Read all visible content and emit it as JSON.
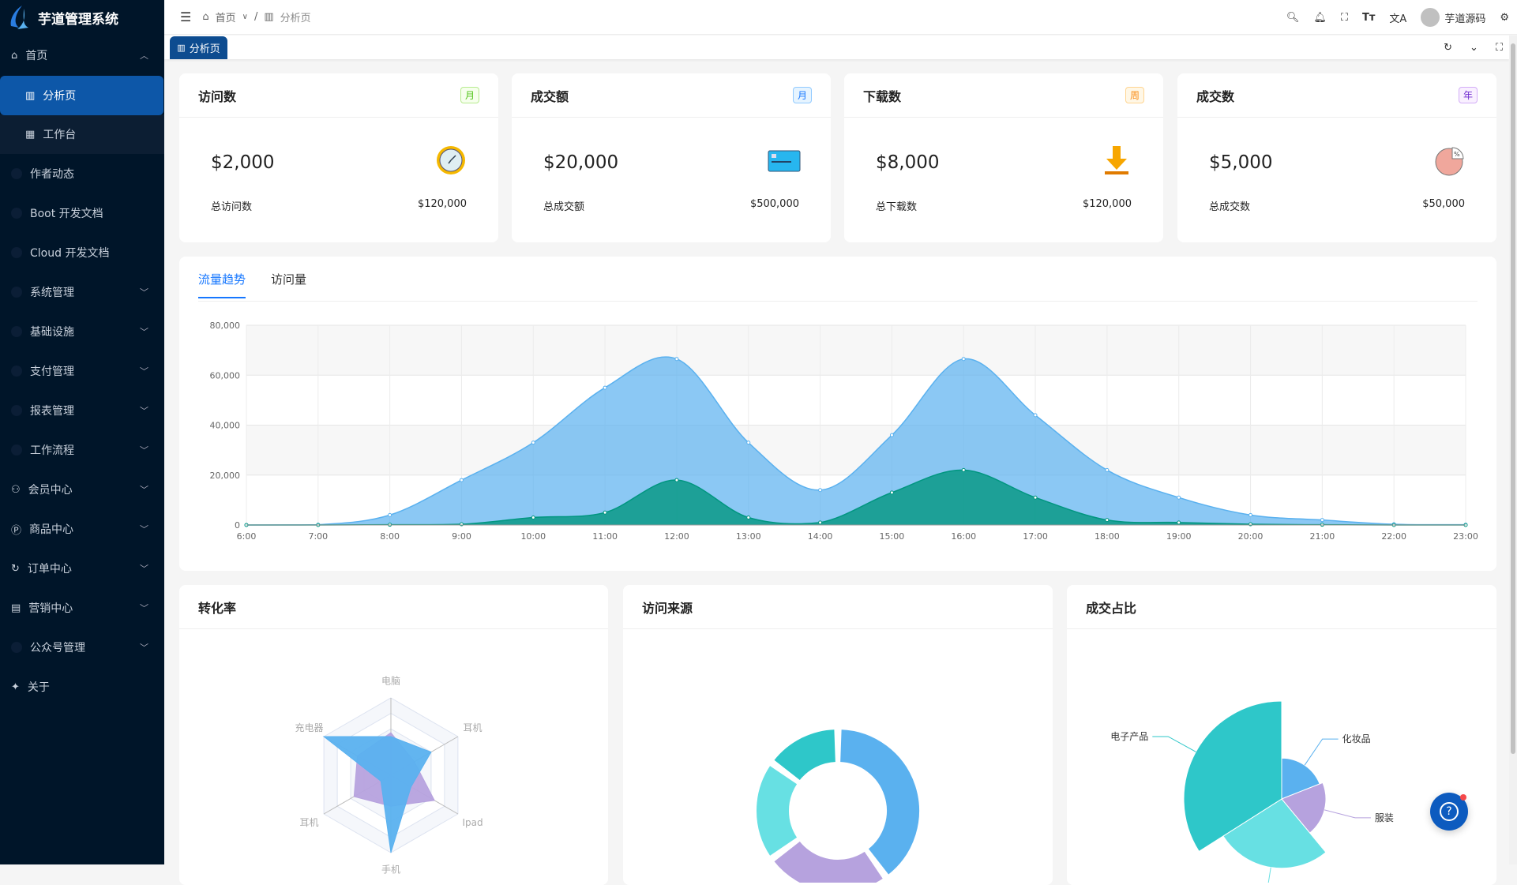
{
  "app": {
    "title": "芋道管理系统"
  },
  "sidebar": {
    "items": [
      {
        "label": "首页",
        "icon": "home-icon",
        "expanded": true
      },
      {
        "label": "分析页",
        "icon": "bar-chart-icon",
        "active": true,
        "sub": true
      },
      {
        "label": "工作台",
        "icon": "grid-icon",
        "sub": true
      },
      {
        "label": "作者动态",
        "icon": "dot-icon"
      },
      {
        "label": "Boot 开发文档",
        "icon": "dot-icon"
      },
      {
        "label": "Cloud 开发文档",
        "icon": "dot-icon"
      },
      {
        "label": "系统管理",
        "icon": "dot-icon",
        "chevron": true
      },
      {
        "label": "基础设施",
        "icon": "dot-icon",
        "chevron": true
      },
      {
        "label": "支付管理",
        "icon": "dot-icon",
        "chevron": true
      },
      {
        "label": "报表管理",
        "icon": "dot-icon",
        "chevron": true
      },
      {
        "label": "工作流程",
        "icon": "dot-icon",
        "chevron": true
      },
      {
        "label": "会员中心",
        "icon": "members-icon",
        "chevron": true
      },
      {
        "label": "商品中心",
        "icon": "product-icon",
        "chevron": true
      },
      {
        "label": "订单中心",
        "icon": "order-icon",
        "chevron": true
      },
      {
        "label": "营销中心",
        "icon": "gift-icon",
        "chevron": true
      },
      {
        "label": "公众号管理",
        "icon": "dot-icon",
        "chevron": true
      },
      {
        "label": "关于",
        "icon": "pin-icon"
      }
    ]
  },
  "header": {
    "breadcrumb": [
      "首页",
      "分析页"
    ],
    "user": "芋道源码"
  },
  "tabs": {
    "active": "分析页"
  },
  "stats": [
    {
      "title": "访问数",
      "tag": "月",
      "tag_color": "#52c41a",
      "value": "$2,000",
      "foot_label": "总访问数",
      "foot_value": "$120,000",
      "icon": "clock-icon"
    },
    {
      "title": "成交额",
      "tag": "月",
      "tag_color": "#1677ff",
      "value": "$20,000",
      "foot_label": "总成交额",
      "foot_value": "$500,000",
      "icon": "credit-card-icon"
    },
    {
      "title": "下载数",
      "tag": "周",
      "tag_color": "#fa8c16",
      "value": "$8,000",
      "foot_label": "总下载数",
      "foot_value": "$120,000",
      "icon": "download-icon"
    },
    {
      "title": "成交数",
      "tag": "年",
      "tag_color": "#722ed1",
      "value": "$5,000",
      "foot_label": "总成交数",
      "foot_value": "$50,000",
      "icon": "pie-percent-icon"
    }
  ],
  "trend": {
    "tabs": [
      "流量趋势",
      "访问量"
    ],
    "active_tab": "流量趋势"
  },
  "panels": {
    "radar_title": "转化率",
    "donut_title": "访问来源",
    "rose_title": "成交占比"
  },
  "chart_data": [
    {
      "type": "area",
      "x": [
        "6:00",
        "7:00",
        "8:00",
        "9:00",
        "10:00",
        "11:00",
        "12:00",
        "13:00",
        "14:00",
        "15:00",
        "16:00",
        "17:00",
        "18:00",
        "19:00",
        "20:00",
        "21:00",
        "22:00",
        "23:00"
      ],
      "ylim": [
        0,
        80000
      ],
      "yticks": [
        "0",
        "20,000",
        "40,000",
        "60,000",
        "80,000"
      ],
      "grid": true,
      "series": [
        {
          "color": "#5ab1ef",
          "values": [
            0,
            100,
            4000,
            18000,
            33000,
            55000,
            66500,
            33000,
            14000,
            36000,
            66500,
            44000,
            22000,
            11000,
            4000,
            2000,
            300,
            100
          ]
        },
        {
          "color": "#019680",
          "values": [
            0,
            0,
            100,
            300,
            3000,
            5000,
            18000,
            3000,
            1000,
            13000,
            22000,
            11000,
            2000,
            1000,
            300,
            100,
            0,
            0
          ]
        }
      ]
    },
    {
      "type": "radar",
      "indicators": [
        "电脑",
        "耳机",
        "Ipad",
        "手机",
        "耳机",
        "充电器"
      ],
      "max": 100,
      "series": [
        {
          "color": "#b6a2de",
          "values": [
            55,
            35,
            65,
            40,
            55,
            50
          ]
        },
        {
          "color": "#5ab1ef",
          "values": [
            50,
            60,
            30,
            100,
            15,
            100
          ]
        }
      ]
    },
    {
      "type": "pie",
      "variant": "donut",
      "series": [
        {
          "color": "#5ab1ef",
          "value": 40
        },
        {
          "color": "#b6a2de",
          "value": 25
        },
        {
          "color": "#67e0e3",
          "value": 20
        },
        {
          "color": "#2ec7c9",
          "value": 15
        }
      ]
    },
    {
      "type": "pie",
      "variant": "rose",
      "series": [
        {
          "name": "化妆品",
          "color": "#5ab1ef",
          "value": 19
        },
        {
          "name": "服装",
          "color": "#b6a2de",
          "value": 20
        },
        {
          "name": "",
          "color": "#67e0e3",
          "value": 27
        },
        {
          "name": "电子产品",
          "color": "#2ec7c9",
          "value": 34
        }
      ]
    }
  ]
}
